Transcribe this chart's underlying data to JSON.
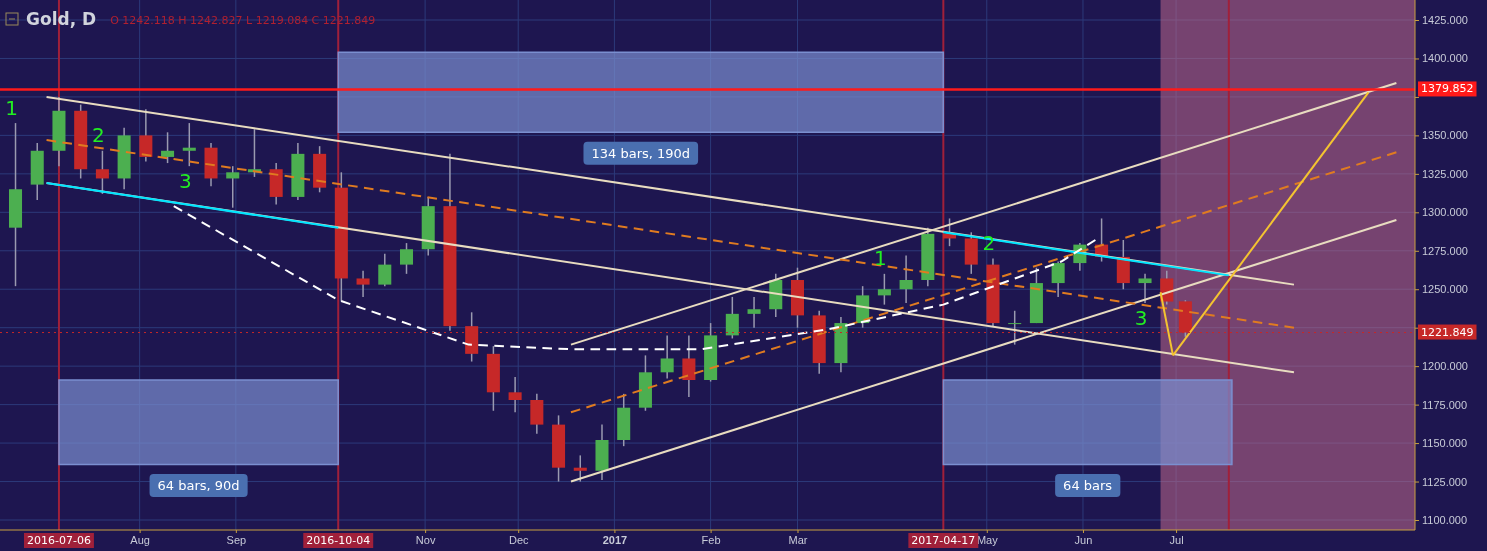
{
  "chart_data": {
    "type": "candlestick",
    "title": "Gold, D",
    "subtitle": "O 1242.118 H 1242.827 L 1219.084 C 1221.849",
    "x": [
      "2016-06-22",
      "2016-06-29",
      "2016-07-06",
      "2016-07-13",
      "2016-07-20",
      "2016-07-27",
      "2016-08-03",
      "2016-08-10",
      "2016-08-17",
      "2016-08-24",
      "2016-08-31",
      "2016-09-07",
      "2016-09-14",
      "2016-09-21",
      "2016-09-28",
      "2016-10-05",
      "2016-10-12",
      "2016-10-19",
      "2016-10-26",
      "2016-11-02",
      "2016-11-09",
      "2016-11-16",
      "2016-11-23",
      "2016-11-30",
      "2016-12-07",
      "2016-12-14",
      "2016-12-21",
      "2016-12-28",
      "2017-01-04",
      "2017-01-11",
      "2017-01-18",
      "2017-01-25",
      "2017-02-01",
      "2017-02-08",
      "2017-02-15",
      "2017-02-22",
      "2017-03-01",
      "2017-03-08",
      "2017-03-15",
      "2017-03-22",
      "2017-03-29",
      "2017-04-05",
      "2017-04-12",
      "2017-04-19",
      "2017-04-26",
      "2017-05-03",
      "2017-05-10",
      "2017-05-17",
      "2017-05-24",
      "2017-05-31",
      "2017-06-07",
      "2017-06-14",
      "2017-06-21",
      "2017-06-28",
      "2017-07-04"
    ],
    "ohlc": [
      [
        1290,
        1358,
        1252,
        1315
      ],
      [
        1318,
        1345,
        1308,
        1340
      ],
      [
        1340,
        1375,
        1330,
        1366
      ],
      [
        1366,
        1370,
        1322,
        1328
      ],
      [
        1328,
        1340,
        1312,
        1322
      ],
      [
        1322,
        1355,
        1315,
        1350
      ],
      [
        1350,
        1367,
        1333,
        1336
      ],
      [
        1336,
        1352,
        1332,
        1340
      ],
      [
        1340,
        1358,
        1330,
        1342
      ],
      [
        1342,
        1345,
        1317,
        1322
      ],
      [
        1322,
        1330,
        1303,
        1326
      ],
      [
        1326,
        1354,
        1323,
        1328
      ],
      [
        1328,
        1332,
        1305,
        1310
      ],
      [
        1310,
        1345,
        1308,
        1338
      ],
      [
        1338,
        1343,
        1313,
        1316
      ],
      [
        1316,
        1326,
        1242,
        1257
      ],
      [
        1257,
        1262,
        1245,
        1253
      ],
      [
        1253,
        1273,
        1252,
        1266
      ],
      [
        1266,
        1280,
        1260,
        1276
      ],
      [
        1276,
        1310,
        1272,
        1304
      ],
      [
        1304,
        1338,
        1223,
        1226
      ],
      [
        1226,
        1235,
        1203,
        1208
      ],
      [
        1208,
        1213,
        1171,
        1183
      ],
      [
        1183,
        1193,
        1170,
        1178
      ],
      [
        1178,
        1182,
        1156,
        1162
      ],
      [
        1162,
        1168,
        1125,
        1134
      ],
      [
        1134,
        1142,
        1125,
        1132
      ],
      [
        1132,
        1162,
        1126,
        1152
      ],
      [
        1152,
        1182,
        1148,
        1173
      ],
      [
        1173,
        1207,
        1171,
        1196
      ],
      [
        1196,
        1220,
        1192,
        1205
      ],
      [
        1205,
        1220,
        1180,
        1191
      ],
      [
        1191,
        1228,
        1190,
        1220
      ],
      [
        1220,
        1245,
        1218,
        1234
      ],
      [
        1234,
        1245,
        1225,
        1237
      ],
      [
        1237,
        1260,
        1232,
        1256
      ],
      [
        1256,
        1264,
        1225,
        1233
      ],
      [
        1233,
        1236,
        1195,
        1202
      ],
      [
        1202,
        1232,
        1196,
        1228
      ],
      [
        1228,
        1252,
        1225,
        1246
      ],
      [
        1246,
        1260,
        1240,
        1250
      ],
      [
        1250,
        1272,
        1241,
        1256
      ],
      [
        1256,
        1290,
        1252,
        1286
      ],
      [
        1286,
        1296,
        1278,
        1283
      ],
      [
        1283,
        1287,
        1260,
        1266
      ],
      [
        1266,
        1270,
        1226,
        1228
      ],
      [
        1228,
        1236,
        1214,
        1228
      ],
      [
        1228,
        1264,
        1228,
        1254
      ],
      [
        1254,
        1268,
        1245,
        1267
      ],
      [
        1267,
        1280,
        1262,
        1279
      ],
      [
        1279,
        1296,
        1268,
        1271
      ],
      [
        1271,
        1282,
        1250,
        1254
      ],
      [
        1254,
        1260,
        1241,
        1257
      ],
      [
        1257,
        1262,
        1240,
        1242
      ],
      [
        1242.118,
        1242.827,
        1219.084,
        1221.849
      ]
    ],
    "colors": [
      "#4caf50",
      "#4caf50",
      "#4caf50",
      "#c62828",
      "#c62828",
      "#4caf50",
      "#c62828",
      "#4caf50",
      "#4caf50",
      "#c62828",
      "#4caf50",
      "#4caf50",
      "#c62828",
      "#4caf50",
      "#c62828",
      "#c62828",
      "#c62828",
      "#4caf50",
      "#4caf50",
      "#4caf50",
      "#c62828",
      "#c62828",
      "#c62828",
      "#c62828",
      "#c62828",
      "#c62828",
      "#c62828",
      "#4caf50",
      "#4caf50",
      "#4caf50",
      "#4caf50",
      "#c62828",
      "#4caf50",
      "#4caf50",
      "#4caf50",
      "#4caf50",
      "#c62828",
      "#c62828",
      "#4caf50",
      "#4caf50",
      "#4caf50",
      "#4caf50",
      "#4caf50",
      "#c62828",
      "#c62828",
      "#c62828",
      "#4caf50",
      "#4caf50",
      "#4caf50",
      "#4caf50",
      "#c62828",
      "#c62828",
      "#4caf50",
      "#c62828",
      "#c62828"
    ],
    "series": [
      {
        "type": "line",
        "color": "#e8dcc0",
        "line_style": "solid",
        "x": [
          "2016-07-02",
          "2017-08-08"
        ],
        "values": [
          1375,
          1253
        ]
      },
      {
        "type": "line",
        "color": "#e8dcc0",
        "line_style": "solid",
        "x": [
          "2016-07-02",
          "2017-08-08"
        ],
        "values": [
          1319,
          1196
        ]
      },
      {
        "type": "line",
        "color": "#e8dcc0",
        "line_style": "solid",
        "x": [
          "2016-12-18",
          "2017-09-10"
        ],
        "values": [
          1214,
          1384
        ]
      },
      {
        "type": "line",
        "color": "#e8dcc0",
        "line_style": "solid",
        "x": [
          "2016-12-18",
          "2017-09-10"
        ],
        "values": [
          1125,
          1295
        ]
      },
      {
        "type": "area",
        "name": "64 bars, 90d",
        "color": "#7b8fd0",
        "x": [
          "2016-07-06",
          "2016-07-06",
          "2016-10-04",
          "2016-10-04"
        ],
        "values": [
          1136,
          1191,
          1191,
          1136
        ]
      },
      {
        "type": "area",
        "name": "134 bars, 190d",
        "color": "#7b8fd0",
        "x": [
          "2016-10-04",
          "2016-10-04",
          "2017-04-17",
          "2017-04-17"
        ],
        "values": [
          1352,
          1404,
          1404,
          1352
        ]
      },
      {
        "type": "area",
        "name": "64 bars",
        "color": "#7b8fd0",
        "x": [
          "2017-04-17",
          "2017-04-17",
          "2017-07-19",
          "2017-07-19"
        ],
        "values": [
          1136,
          1191,
          1191,
          1136
        ]
      },
      {
        "type": "line",
        "color": "#e07b20",
        "line_style": "dashed",
        "x": [
          "2016-07-02",
          "2017-08-08"
        ],
        "values": [
          1347,
          1225
        ]
      },
      {
        "type": "line",
        "color": "#e07b20",
        "line_style": "dashed",
        "x": [
          "2016-12-18",
          "2017-09-10"
        ],
        "values": [
          1170,
          1339
        ]
      },
      {
        "type": "line",
        "color": "#00e5ff",
        "line_style": "solid",
        "x": [
          "2016-07-02",
          "2016-10-04"
        ],
        "values": [
          1319,
          1290
        ]
      },
      {
        "type": "line",
        "color": "#00e5ff",
        "line_style": "solid",
        "x": [
          "2017-04-17",
          "2017-07-18"
        ],
        "values": [
          1287,
          1259
        ]
      },
      {
        "type": "line",
        "color": "#ffffff",
        "line_style": "dashed",
        "x": [
          "2016-08-12",
          "2016-10-04",
          "2016-11-15",
          "2016-12-18",
          "2017-01-29",
          "2017-03-11",
          "2017-04-17",
          "2017-05-25",
          "2017-06-05"
        ],
        "values": [
          1304,
          1243,
          1214,
          1211,
          1211,
          1224,
          1240,
          1268,
          1282
        ]
      },
      {
        "type": "line",
        "color": "#f4c430",
        "line_style": "solid",
        "x": [
          "2017-06-26",
          "2017-06-30"
        ],
        "values": [
          1248,
          1207
        ]
      },
      {
        "type": "line",
        "color": "#f4c430",
        "line_style": "solid",
        "x": [
          "2017-06-30",
          "2017-09-01"
        ],
        "values": [
          1207,
          1378
        ]
      }
    ],
    "xlim": [
      "2016-06-17",
      "2017-09-16"
    ],
    "xticks": [
      {
        "value": "2016-08-01",
        "label": "Aug"
      },
      {
        "value": "2016-09-01",
        "label": "Sep"
      },
      {
        "value": "2016-11-01",
        "label": "Nov"
      },
      {
        "value": "2016-12-01",
        "label": "Dec"
      },
      {
        "value": "2017-01-01",
        "label": "2017"
      },
      {
        "value": "2017-02-01",
        "label": "Feb"
      },
      {
        "value": "2017-03-01",
        "label": "Mar"
      },
      {
        "value": "2017-05-01",
        "label": "May"
      },
      {
        "value": "2017-06-01",
        "label": "Jun"
      },
      {
        "value": "2017-07-01",
        "label": "Jul"
      }
    ],
    "ylim": [
      1093.5,
      1438
    ],
    "yticks": [
      {
        "value": 1100,
        "label": "1100.000"
      },
      {
        "value": 1125,
        "label": "1125.000"
      },
      {
        "value": 1150,
        "label": "1150.000"
      },
      {
        "value": 1175,
        "label": "1175.000"
      },
      {
        "value": 1200,
        "label": "1200.000"
      },
      {
        "value": 1225,
        "label": null
      },
      {
        "value": 1250,
        "label": "1250.000"
      },
      {
        "value": 1275,
        "label": "1275.000"
      },
      {
        "value": 1300,
        "label": "1300.000"
      },
      {
        "value": 1325,
        "label": "1325.000"
      },
      {
        "value": 1350,
        "label": "1350.000"
      },
      {
        "value": 1375,
        "label": null
      },
      {
        "value": 1400,
        "label": "1400.000"
      },
      {
        "value": 1425,
        "label": "1425.000"
      }
    ],
    "grid": true,
    "ref_lines": [
      {
        "axis": "y",
        "value": 1379.852,
        "label": "1379.852",
        "color": "#ff1a1a",
        "line_style": "solid"
      },
      {
        "axis": "y",
        "value": 1221.849,
        "label": "1221.849",
        "color": "#c62828",
        "line_style": "dotted"
      },
      {
        "axis": "x",
        "value": "2016-07-06",
        "label": "2016-07-06",
        "color": "#a0203a",
        "line_style": "solid"
      },
      {
        "axis": "x",
        "value": "2016-10-04",
        "label": "2016-10-04",
        "color": "#a0203a",
        "line_style": "solid"
      },
      {
        "axis": "x",
        "value": "2017-04-17",
        "label": "2017-04-17",
        "color": "#a0203a",
        "line_style": "solid"
      },
      {
        "axis": "x",
        "value": "2017-07-18",
        "label": null,
        "color": "#a0203a",
        "line_style": "solid"
      }
    ],
    "bands": [
      {
        "axis": "x",
        "from": "2017-06-26",
        "to": "2017-09-16",
        "label": null,
        "color": "#c06a8a"
      }
    ],
    "annotations": [
      {
        "text": "1",
        "x": "2016-06-22",
        "y": 1358
      },
      {
        "text": "2",
        "x": "2016-07-20",
        "y": 1340
      },
      {
        "text": "3",
        "x": "2016-08-17",
        "y": 1330
      },
      {
        "text": "1",
        "x": "2017-03-29",
        "y": 1260
      },
      {
        "text": "2",
        "x": "2017-05-03",
        "y": 1270
      },
      {
        "text": "3",
        "x": "2017-06-21",
        "y": 1241
      }
    ]
  }
}
